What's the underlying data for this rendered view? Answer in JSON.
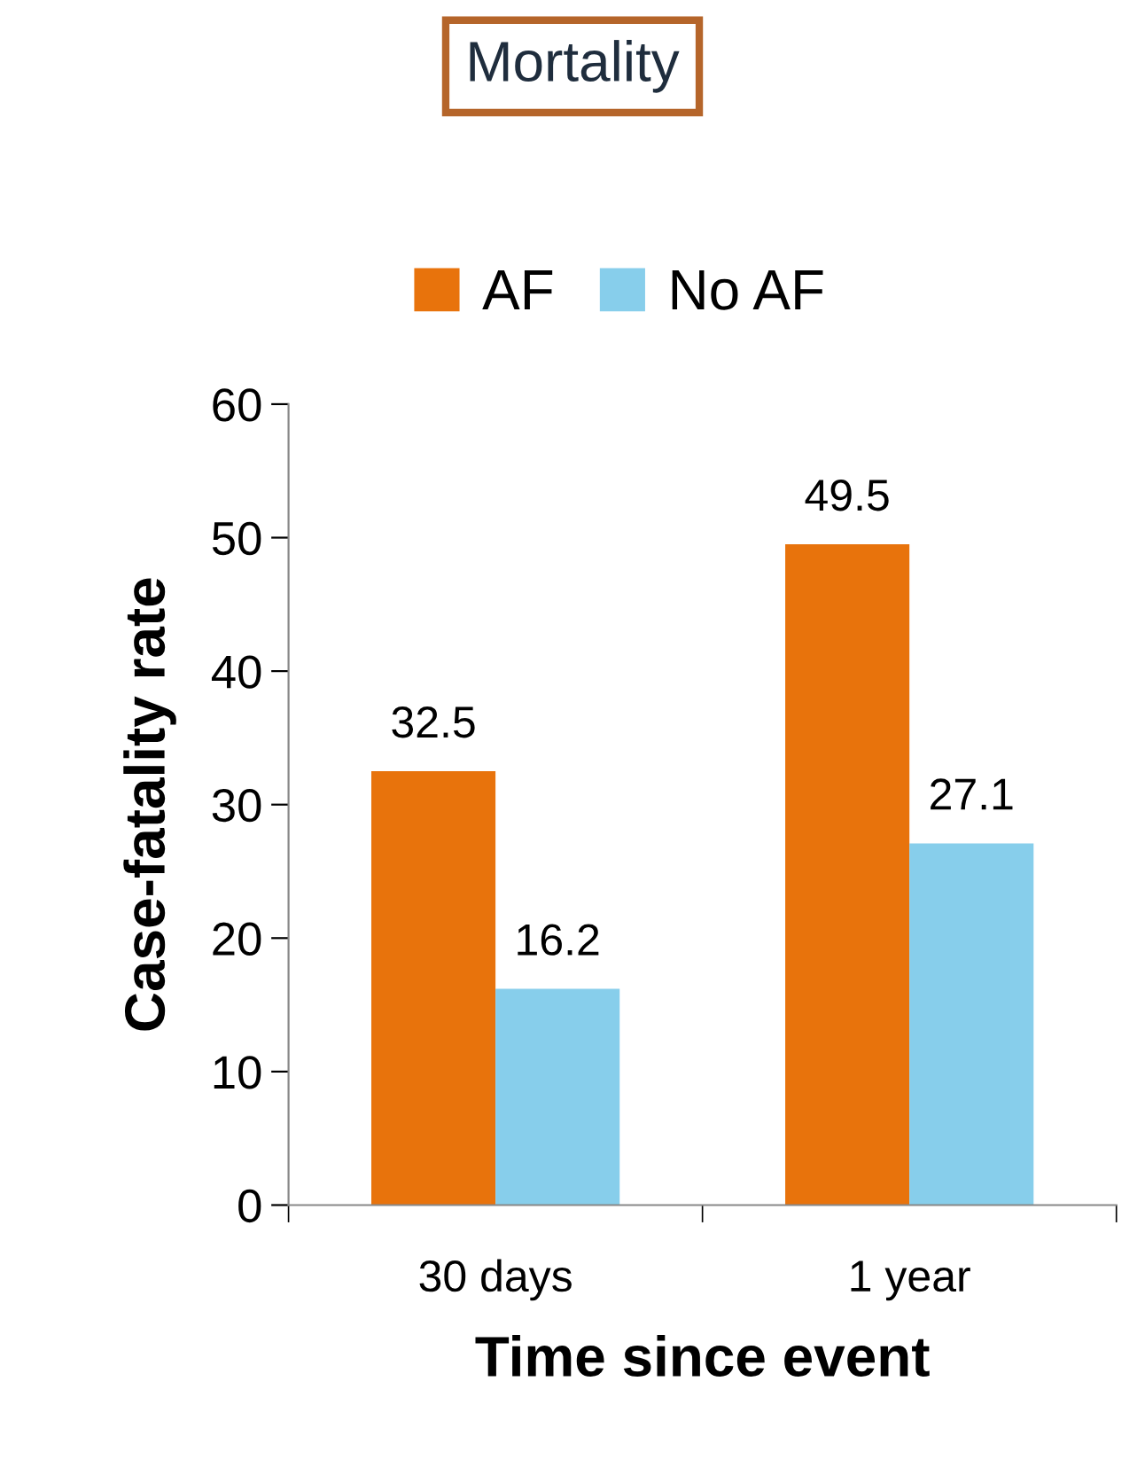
{
  "chart_data": {
    "type": "bar",
    "title": "Mortality",
    "xlabel": "Time since event",
    "ylabel": "Case-fatality rate",
    "categories": [
      "30 days",
      "1 year"
    ],
    "series": [
      {
        "name": "AF",
        "color": "#e8730c",
        "values": [
          32.5,
          49.5
        ]
      },
      {
        "name": "No AF",
        "color": "#87ceeb",
        "values": [
          16.2,
          27.1
        ]
      }
    ],
    "ylim": [
      0,
      60
    ],
    "yticks": [
      0,
      10,
      20,
      30,
      40,
      50,
      60
    ],
    "grid": false,
    "legend": "top",
    "data_labels": true
  }
}
